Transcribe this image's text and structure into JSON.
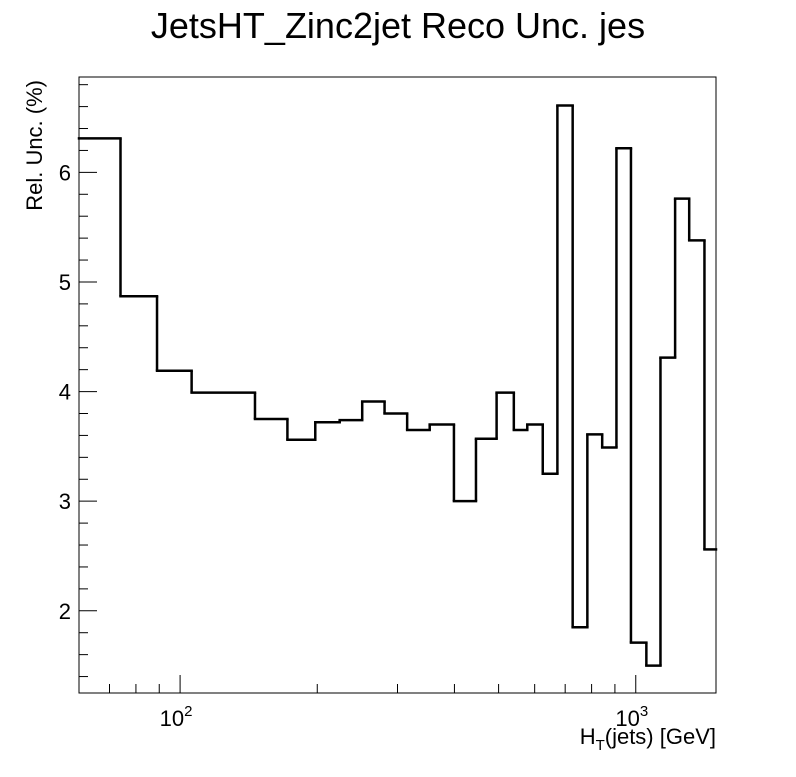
{
  "chart_data": {
    "type": "histogram-step",
    "title": "JetsHT_Zinc2jet Reco Unc. jes",
    "xlabel_main": "H",
    "xlabel_sub": "T",
    "xlabel_rest": "(jets) [GeV]",
    "ylabel": "Rel. Unc. (%)",
    "x_scale": "log",
    "xlim": [
      60,
      1500
    ],
    "ylim": [
      1.25,
      6.87
    ],
    "x_major_ticks": [
      {
        "value": 100,
        "base": "10",
        "exp": "2"
      },
      {
        "value": 1000,
        "base": "10",
        "exp": "3"
      }
    ],
    "y_major_ticks": [
      2,
      3,
      4,
      5,
      6
    ],
    "y_tick_labels": [
      "2",
      "3",
      "4",
      "5",
      "6"
    ],
    "grid": false,
    "bins": [
      {
        "low": 60,
        "high": 74,
        "value": 6.31
      },
      {
        "low": 74,
        "high": 89,
        "value": 4.87
      },
      {
        "low": 89,
        "high": 106,
        "value": 4.19
      },
      {
        "low": 106,
        "high": 146,
        "value": 3.99
      },
      {
        "low": 146,
        "high": 172,
        "value": 3.75
      },
      {
        "low": 172,
        "high": 198,
        "value": 3.56
      },
      {
        "low": 198,
        "high": 224,
        "value": 3.72
      },
      {
        "low": 224,
        "high": 251,
        "value": 3.74
      },
      {
        "low": 251,
        "high": 281,
        "value": 3.91
      },
      {
        "low": 281,
        "high": 315,
        "value": 3.8
      },
      {
        "low": 315,
        "high": 353,
        "value": 3.65
      },
      {
        "low": 353,
        "high": 399,
        "value": 3.7
      },
      {
        "low": 399,
        "high": 446,
        "value": 3.0
      },
      {
        "low": 446,
        "high": 495,
        "value": 3.57
      },
      {
        "low": 495,
        "high": 540,
        "value": 3.99
      },
      {
        "low": 540,
        "high": 578,
        "value": 3.65
      },
      {
        "low": 578,
        "high": 625,
        "value": 3.7
      },
      {
        "low": 625,
        "high": 673,
        "value": 3.25
      },
      {
        "low": 673,
        "high": 727,
        "value": 6.61
      },
      {
        "low": 727,
        "high": 783,
        "value": 1.85
      },
      {
        "low": 783,
        "high": 844,
        "value": 3.61
      },
      {
        "low": 844,
        "high": 907,
        "value": 3.49
      },
      {
        "low": 907,
        "high": 976,
        "value": 6.22
      },
      {
        "low": 976,
        "high": 1055,
        "value": 1.71
      },
      {
        "low": 1055,
        "high": 1133,
        "value": 1.5
      },
      {
        "low": 1133,
        "high": 1220,
        "value": 4.31
      },
      {
        "low": 1220,
        "high": 1310,
        "value": 5.76
      },
      {
        "low": 1310,
        "high": 1415,
        "value": 5.38
      },
      {
        "low": 1415,
        "high": 1500,
        "value": 2.56
      }
    ]
  }
}
